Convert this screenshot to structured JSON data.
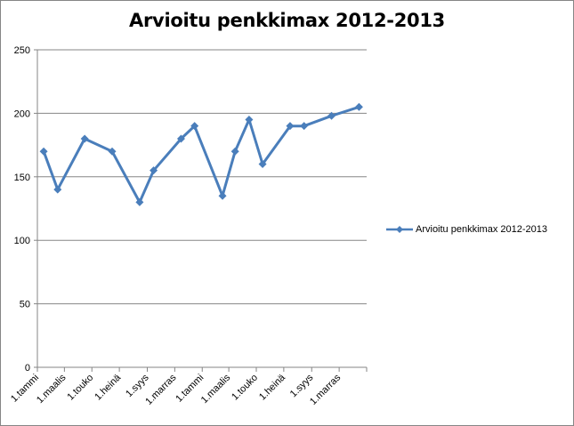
{
  "chart_data": {
    "type": "line",
    "title": "Arvioitu penkkimax 2012-2013",
    "xlabel": "",
    "ylabel": "",
    "ylim": [
      0,
      250
    ],
    "yticks": [
      0,
      50,
      100,
      150,
      200,
      250
    ],
    "grid": true,
    "legend_position": "right",
    "x_axis": {
      "min": "2012-01-01",
      "max": "2013-12-31",
      "tick_labels": [
        {
          "date": "2012-01-01",
          "label": "1.tammi"
        },
        {
          "date": "2012-03-01",
          "label": "1.maalis"
        },
        {
          "date": "2012-05-01",
          "label": "1.touko"
        },
        {
          "date": "2012-07-01",
          "label": "1.heinä"
        },
        {
          "date": "2012-09-01",
          "label": "1.syys"
        },
        {
          "date": "2012-11-01",
          "label": "1.marras"
        },
        {
          "date": "2013-01-01",
          "label": "1.tammi"
        },
        {
          "date": "2013-03-01",
          "label": "1.maalis"
        },
        {
          "date": "2013-05-01",
          "label": "1.touko"
        },
        {
          "date": "2013-07-01",
          "label": "1.heinä"
        },
        {
          "date": "2013-09-01",
          "label": "1.syys"
        },
        {
          "date": "2013-11-01",
          "label": "1.marras"
        }
      ]
    },
    "series": [
      {
        "name": "Arvioitu penkkimax 2012-2013",
        "color": "#4a7ebb",
        "points": [
          {
            "x": "2012-01-15",
            "y": 170
          },
          {
            "x": "2012-02-15",
            "y": 140
          },
          {
            "x": "2012-04-15",
            "y": 180
          },
          {
            "x": "2012-06-15",
            "y": 170
          },
          {
            "x": "2012-08-15",
            "y": 130
          },
          {
            "x": "2012-09-15",
            "y": 155
          },
          {
            "x": "2012-11-15",
            "y": 180
          },
          {
            "x": "2012-12-15",
            "y": 190
          },
          {
            "x": "2013-02-15",
            "y": 135
          },
          {
            "x": "2013-03-15",
            "y": 170
          },
          {
            "x": "2013-04-15",
            "y": 195
          },
          {
            "x": "2013-05-15",
            "y": 160
          },
          {
            "x": "2013-07-15",
            "y": 190
          },
          {
            "x": "2013-08-15",
            "y": 190
          },
          {
            "x": "2013-10-15",
            "y": 198
          },
          {
            "x": "2013-12-15",
            "y": 205
          }
        ]
      }
    ]
  }
}
